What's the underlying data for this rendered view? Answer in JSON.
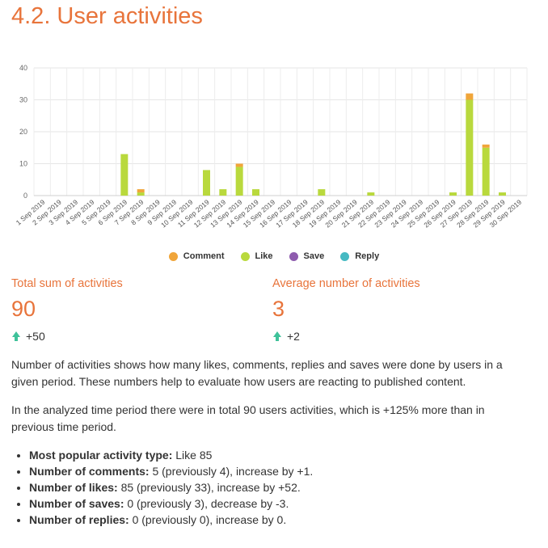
{
  "page": {
    "title": "4.2. User activities"
  },
  "stats": [
    {
      "label": "Total sum of activities",
      "value": "90",
      "change": "+50"
    },
    {
      "label": "Average number of activities",
      "value": "3",
      "change": "+2"
    }
  ],
  "description": [
    "Number of activities shows how many likes, comments, replies and saves were done by users in a given period. These numbers help to evaluate how users are reacting to published content.",
    "In the analyzed time period there were in total 90 users activities, which is +125% more than in previous time period."
  ],
  "bullets": [
    {
      "label": "Most popular activity type:",
      "text": " Like 85"
    },
    {
      "label": "Number of comments:",
      "text": " 5 (previously 4), increase by +1."
    },
    {
      "label": "Number of likes:",
      "text": " 85 (previously 33), increase by +52."
    },
    {
      "label": "Number of saves:",
      "text": " 0 (previously 3), decrease by -3."
    },
    {
      "label": "Number of replies:",
      "text": " 0 (previously 0), increase by 0."
    }
  ],
  "colors": {
    "comment": "#f0a53a",
    "like": "#b9d93d",
    "save": "#8e5cae",
    "reply": "#45b9c2",
    "accent": "#e8743b",
    "up": "#3fc29a"
  },
  "chart_data": {
    "type": "bar",
    "stacked": true,
    "categories": [
      "1 Sep 2019",
      "2 Sep 2019",
      "3 Sep 2019",
      "4 Sep 2019",
      "5 Sep 2019",
      "6 Sep 2019",
      "7 Sep 2019",
      "8 Sep 2019",
      "9 Sep 2019",
      "10 Sep 2019",
      "11 Sep 2019",
      "12 Sep 2019",
      "13 Sep 2019",
      "14 Sep 2019",
      "15 Sep 2019",
      "16 Sep 2019",
      "17 Sep 2019",
      "18 Sep 2019",
      "19 Sep 2019",
      "20 Sep 2019",
      "21 Sep 2019",
      "22 Sep 2019",
      "23 Sep 2019",
      "24 Sep 2019",
      "25 Sep 2019",
      "26 Sep 2019",
      "27 Sep 2019",
      "28 Sep 2019",
      "29 Sep 2019",
      "30 Sep 2019"
    ],
    "series": [
      {
        "name": "Like",
        "color": "#b9d93d",
        "values": [
          0,
          0,
          0,
          0,
          0,
          13,
          1,
          0,
          0,
          0,
          8,
          2,
          9,
          2,
          0,
          0,
          0,
          2,
          0,
          0,
          1,
          0,
          0,
          0,
          0,
          1,
          30,
          15,
          1,
          0
        ]
      },
      {
        "name": "Comment",
        "color": "#f0a53a",
        "values": [
          0,
          0,
          0,
          0,
          0,
          0,
          1,
          0,
          0,
          0,
          0,
          0,
          1,
          0,
          0,
          0,
          0,
          0,
          0,
          0,
          0,
          0,
          0,
          0,
          0,
          0,
          2,
          1,
          0,
          0
        ]
      },
      {
        "name": "Save",
        "color": "#8e5cae",
        "values": [
          0,
          0,
          0,
          0,
          0,
          0,
          0,
          0,
          0,
          0,
          0,
          0,
          0,
          0,
          0,
          0,
          0,
          0,
          0,
          0,
          0,
          0,
          0,
          0,
          0,
          0,
          0,
          0,
          0,
          0
        ]
      },
      {
        "name": "Reply",
        "color": "#45b9c2",
        "values": [
          0,
          0,
          0,
          0,
          0,
          0,
          0,
          0,
          0,
          0,
          0,
          0,
          0,
          0,
          0,
          0,
          0,
          0,
          0,
          0,
          0,
          0,
          0,
          0,
          0,
          0,
          0,
          0,
          0,
          0
        ]
      }
    ],
    "legend": [
      "Comment",
      "Like",
      "Save",
      "Reply"
    ],
    "yticks": [
      0,
      10,
      20,
      30,
      40
    ],
    "ylim": [
      0,
      40
    ],
    "grid": true,
    "legend_position": "bottom"
  }
}
